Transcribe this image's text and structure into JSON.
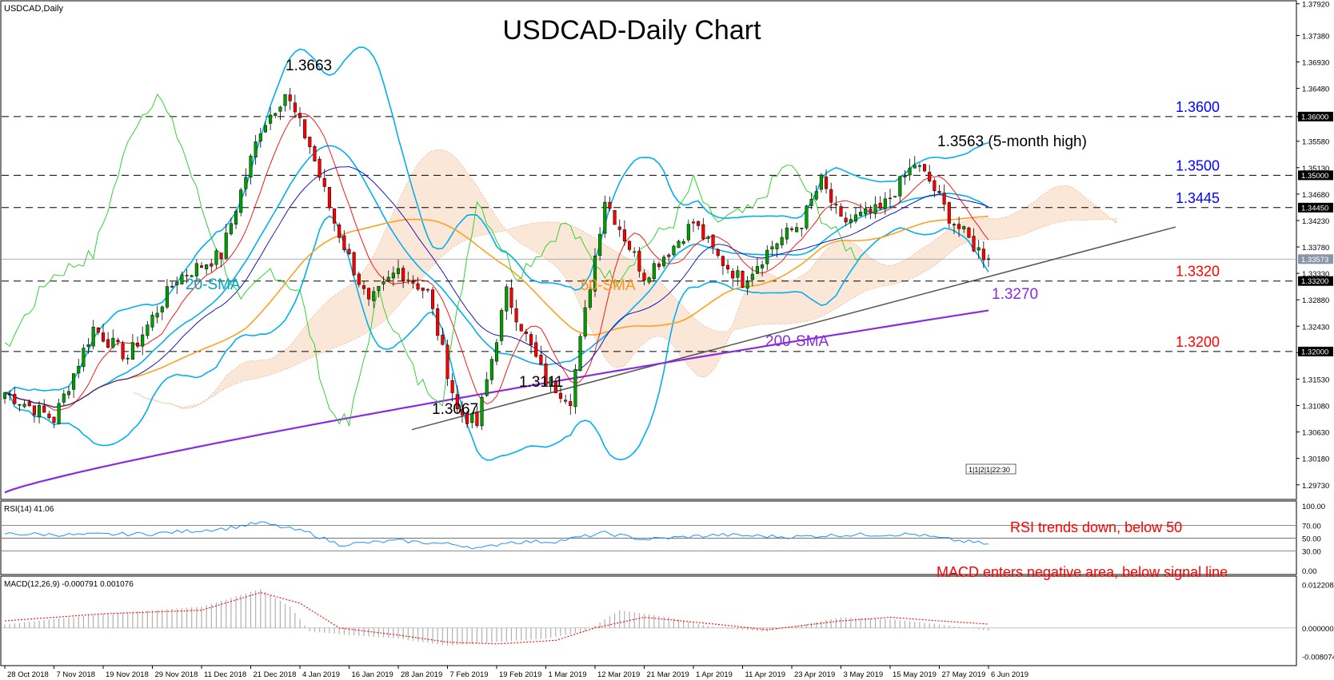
{
  "window_label": "USDCAD,Daily",
  "rsi_label": "RSI(14) 41.06",
  "macd_label": "MACD(12,26,9) -0.000791 0.001076",
  "chart_data": {
    "type": "candlestick",
    "title": "USDCAD-Daily Chart",
    "timeframe": "Daily",
    "colors": {
      "up": "#00a000",
      "down": "#ff0000",
      "sma20": "#00b0f0",
      "sma50": "#ffa020",
      "sma200": "#8a2be2",
      "bands": "#00b0f0",
      "cloud": "#f08040",
      "level_blue": "#0000ff",
      "level_red": "#ff0000",
      "level_purple": "#8a2be2",
      "rsi": "#1e90ff",
      "macd_signal": "#ff0000",
      "macd_hist": "#b0b0b0"
    },
    "ylim": [
      1.2955,
      1.3793
    ],
    "price_ticks": [
      "1.37920",
      "1.37380",
      "1.36930",
      "1.36480",
      "1.36000",
      "1.35580",
      "1.35130",
      "1.34680",
      "1.34230",
      "1.33780",
      "1.33330",
      "1.32880",
      "1.32430",
      "1.31980",
      "1.31530",
      "1.31080",
      "1.30630",
      "1.30180",
      "1.29730"
    ],
    "current_price": "1.33573",
    "hline_levels": [
      {
        "value": 1.36,
        "text": "1.3600",
        "color": "#0000ff",
        "axis_tag": "1.36000"
      },
      {
        "value": 1.35,
        "text": "1.3500",
        "color": "#0000ff",
        "axis_tag": "1.35000"
      },
      {
        "value": 1.3445,
        "text": "1.3445",
        "color": "#0000ff",
        "axis_tag": "1.34450"
      },
      {
        "value": 1.332,
        "text": "1.3320",
        "color": "#ff0000",
        "axis_tag": "1.33200"
      },
      {
        "value": 1.32,
        "text": "1.3200",
        "color": "#ff0000",
        "axis_tag": "1.32000"
      }
    ],
    "sma200_level": {
      "value": 1.327,
      "text": "1.3270"
    },
    "x_tick_labels": [
      "28 Oct 2018",
      "7 Nov 2018",
      "19 Nov 2018",
      "29 Nov 2018",
      "11 Dec 2018",
      "21 Dec 2018",
      "4 Jan 2019",
      "16 Jan 2019",
      "28 Jan 2019",
      "7 Feb 2019",
      "19 Feb 2019",
      "1 Mar 2019",
      "12 Mar 2019",
      "21 Mar 2019",
      "1 Apr 2019",
      "11 Apr 2019",
      "23 Apr 2019",
      "3 May 2019",
      "15 May 2019",
      "27 May 2019",
      "6 Jun 2019"
    ],
    "annotations": {
      "high_dec": "1.3663",
      "high_may": "1.3563 (5-month high)",
      "low_jan": "1.3067",
      "low_feb": "1.3111",
      "sma20": "20-SMA",
      "sma50": "50-SMA",
      "sma200": "200-SMA",
      "rsi_note": "RSI trends down, below 50",
      "macd_note": "MACD enters negative area, below signal line",
      "time_marker": "1|1|2|1|22:30"
    },
    "anchors": [
      [
        0,
        1.313
      ],
      [
        10,
        1.3085
      ],
      [
        18,
        1.324
      ],
      [
        25,
        1.319
      ],
      [
        35,
        1.3325
      ],
      [
        44,
        1.3365
      ],
      [
        52,
        1.358
      ],
      [
        57,
        1.364
      ],
      [
        62,
        1.355
      ],
      [
        67,
        1.342
      ],
      [
        74,
        1.328
      ],
      [
        80,
        1.334
      ],
      [
        86,
        1.33
      ],
      [
        92,
        1.31
      ],
      [
        96,
        1.3075
      ],
      [
        102,
        1.33
      ],
      [
        110,
        1.315
      ],
      [
        115,
        1.312
      ],
      [
        122,
        1.346
      ],
      [
        130,
        1.333
      ],
      [
        136,
        1.338
      ],
      [
        140,
        1.342
      ],
      [
        145,
        1.336
      ],
      [
        150,
        1.332
      ],
      [
        156,
        1.338
      ],
      [
        162,
        1.342
      ],
      [
        166,
        1.349
      ],
      [
        170,
        1.342
      ],
      [
        178,
        1.344
      ],
      [
        185,
        1.352
      ],
      [
        188,
        1.349
      ],
      [
        192,
        1.343
      ],
      [
        197,
        1.338
      ],
      [
        200,
        1.3357
      ]
    ],
    "rsi": {
      "ylim": [
        0,
        100
      ],
      "levels": [
        70,
        50,
        30
      ],
      "tick_labels": [
        "100.00",
        "70.00",
        "50.00",
        "30.00",
        "0.00"
      ],
      "last": 41.06,
      "anchors": [
        [
          0,
          57
        ],
        [
          15,
          55
        ],
        [
          30,
          57
        ],
        [
          45,
          65
        ],
        [
          52,
          74
        ],
        [
          62,
          58
        ],
        [
          68,
          40
        ],
        [
          80,
          46
        ],
        [
          92,
          40
        ],
        [
          97,
          34
        ],
        [
          102,
          44
        ],
        [
          112,
          45
        ],
        [
          122,
          58
        ],
        [
          130,
          48
        ],
        [
          145,
          55
        ],
        [
          160,
          52
        ],
        [
          170,
          55
        ],
        [
          185,
          56
        ],
        [
          190,
          50
        ],
        [
          195,
          45
        ],
        [
          200,
          41
        ]
      ]
    },
    "macd": {
      "ylim": [
        -0.0095,
        0.0135
      ],
      "tick_labels": [
        "0.012208",
        "0.000000",
        "-0.008074"
      ],
      "values": {
        "macd": -0.000791,
        "signal": 0.001076
      },
      "hist_anchors": [
        [
          0,
          0.001
        ],
        [
          20,
          0.004
        ],
        [
          40,
          0.006
        ],
        [
          52,
          0.011
        ],
        [
          58,
          0.006
        ],
        [
          62,
          -0.001
        ],
        [
          70,
          -0.002
        ],
        [
          80,
          -0.003
        ],
        [
          90,
          -0.005
        ],
        [
          100,
          -0.004
        ],
        [
          110,
          -0.003
        ],
        [
          118,
          -0.001
        ],
        [
          125,
          0.005
        ],
        [
          135,
          0.003
        ],
        [
          145,
          0.0
        ],
        [
          155,
          -0.001
        ],
        [
          170,
          0.003
        ],
        [
          180,
          0.0025
        ],
        [
          190,
          0.001
        ],
        [
          200,
          -0.0008
        ]
      ],
      "signal_anchors": [
        [
          0,
          0.002
        ],
        [
          20,
          0.004
        ],
        [
          40,
          0.005
        ],
        [
          52,
          0.01
        ],
        [
          60,
          0.007
        ],
        [
          68,
          0.0
        ],
        [
          80,
          -0.002
        ],
        [
          90,
          -0.004
        ],
        [
          100,
          -0.0045
        ],
        [
          112,
          -0.0035
        ],
        [
          120,
          0.0
        ],
        [
          130,
          0.003
        ],
        [
          145,
          0.001
        ],
        [
          155,
          -0.0005
        ],
        [
          170,
          0.002
        ],
        [
          180,
          0.003
        ],
        [
          190,
          0.002
        ],
        [
          200,
          0.0011
        ]
      ]
    }
  }
}
